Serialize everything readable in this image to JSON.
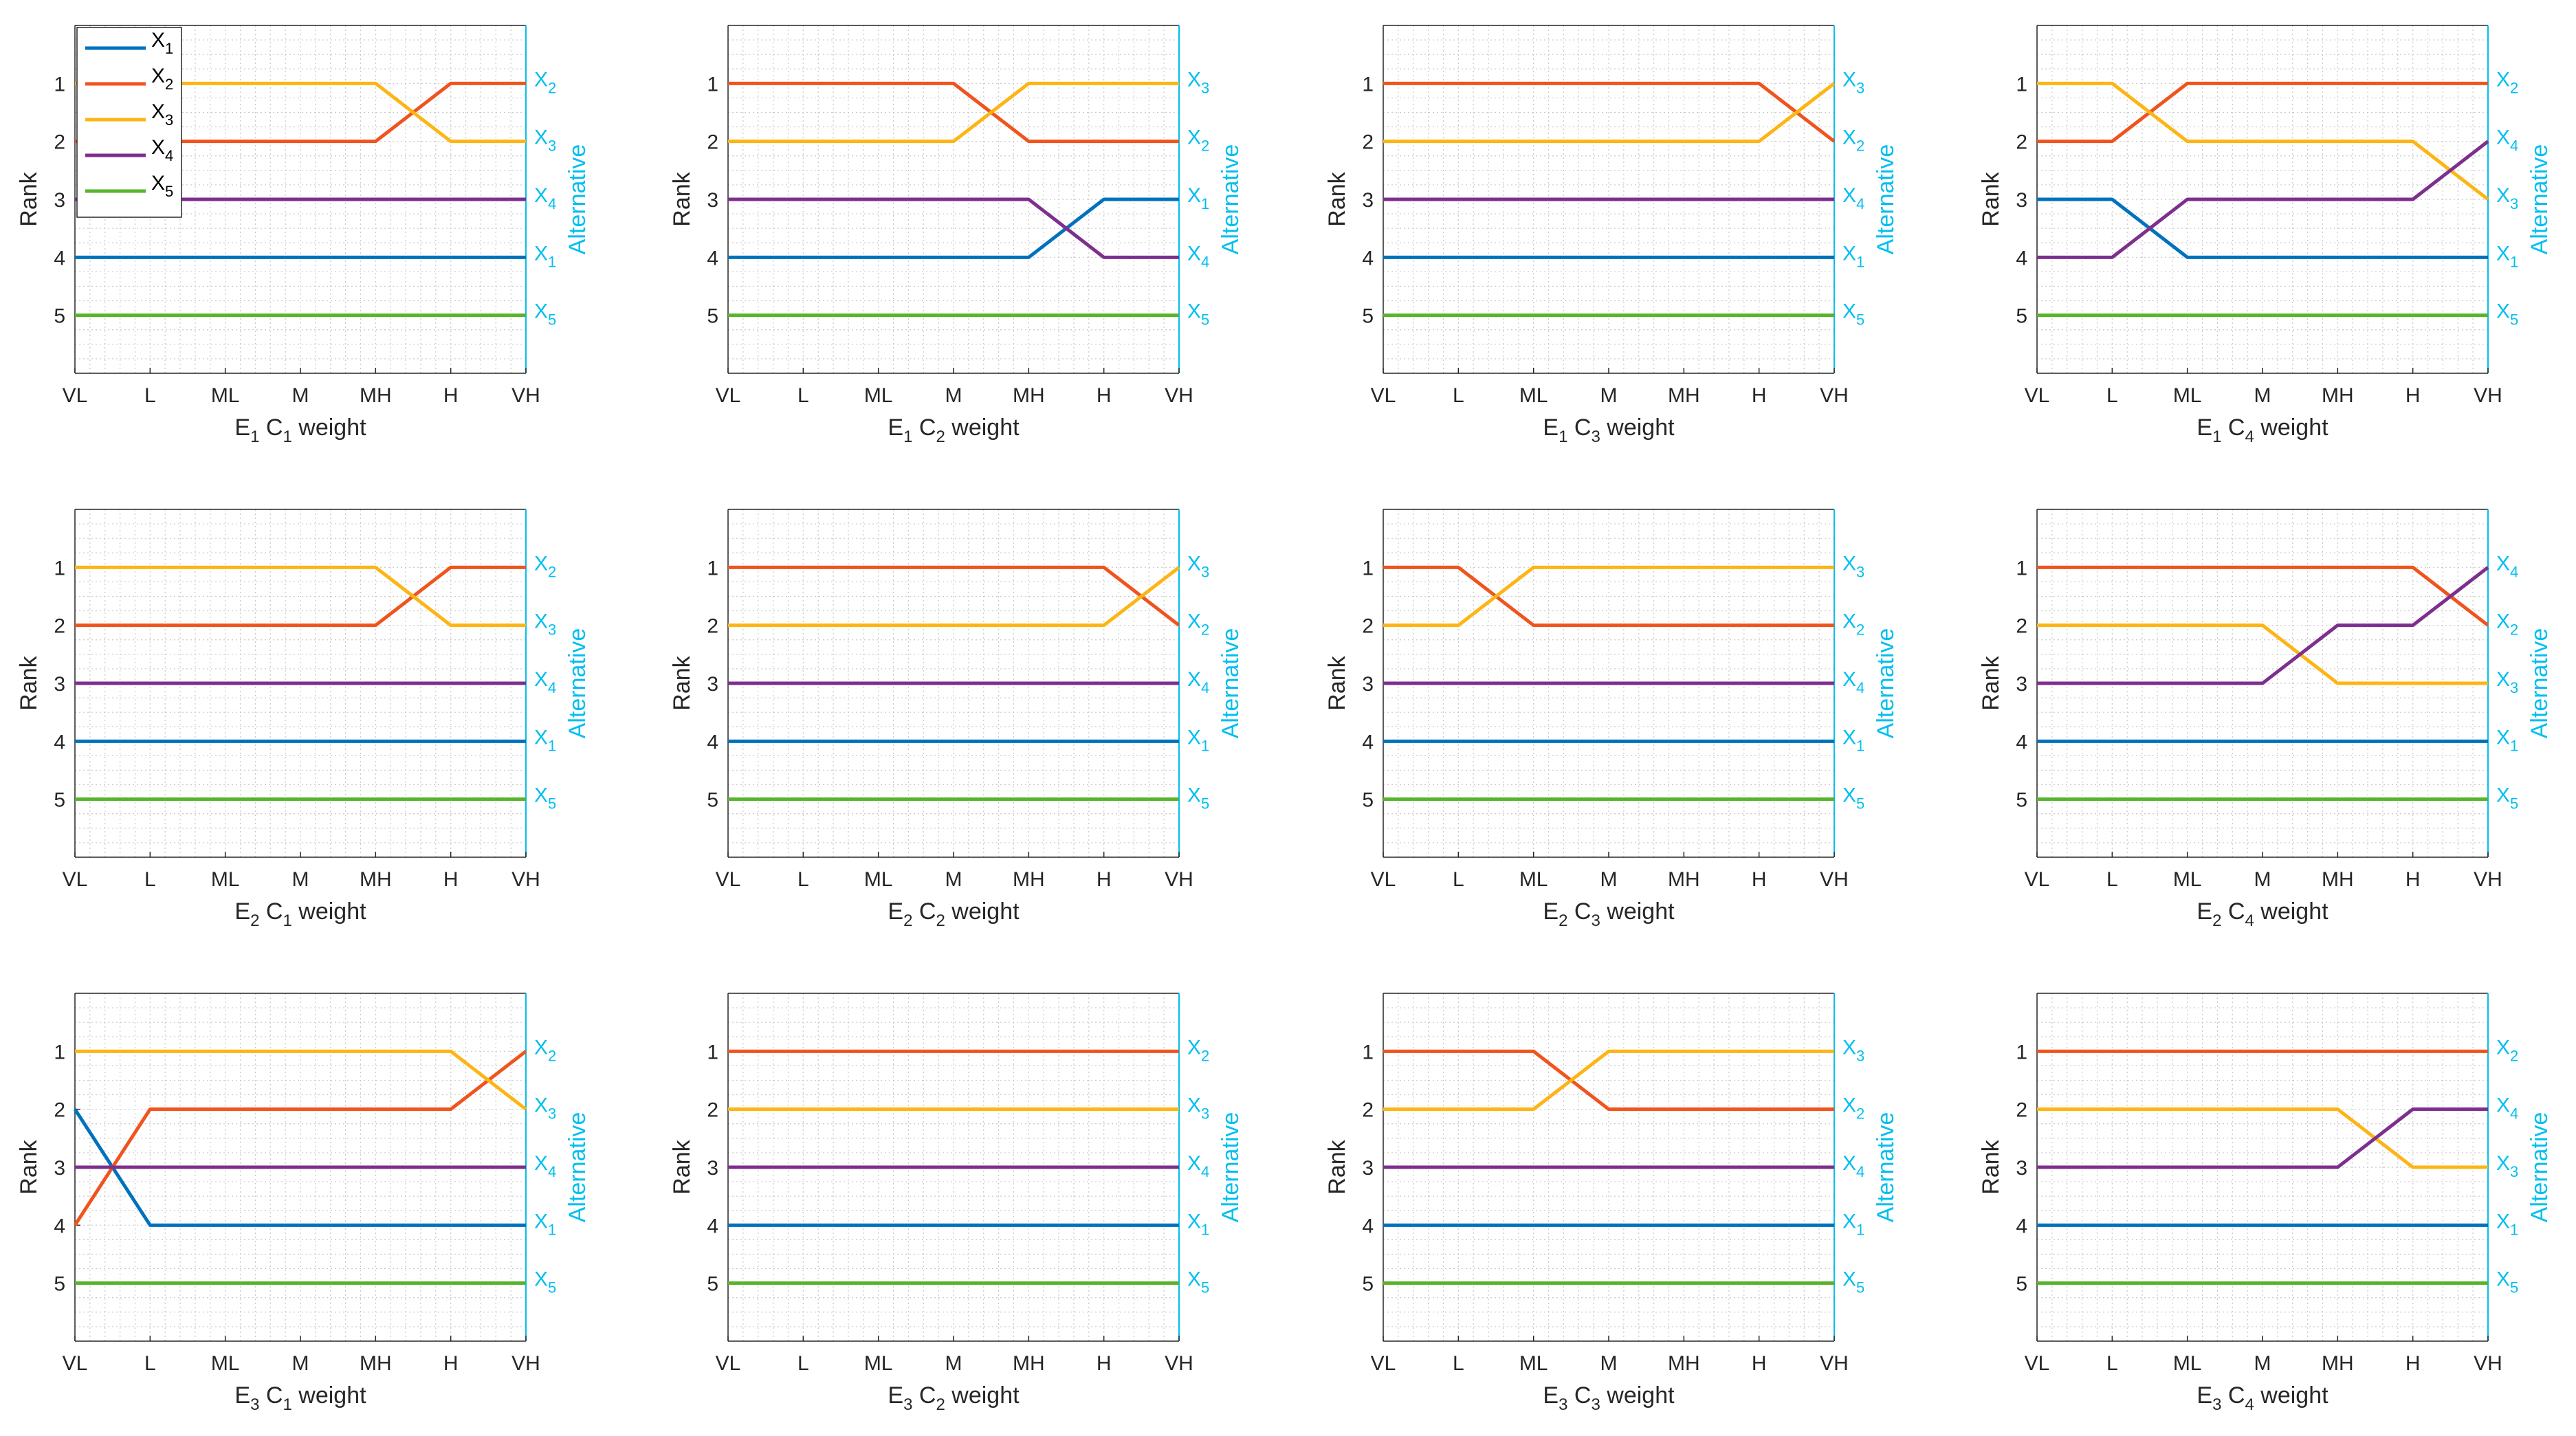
{
  "figure": {
    "x_categories": [
      "VL",
      "L",
      "ML",
      "M",
      "MH",
      "H",
      "VH"
    ],
    "rank_ticks": [
      "1",
      "2",
      "3",
      "4",
      "5"
    ],
    "ylabel": "Rank",
    "right_axis_label": "Alternative",
    "xlabel_suffix": "weight",
    "right_axis_color": "#00BFF0",
    "series_colors": {
      "X1": "#0072BD",
      "X2": "#F0541E",
      "X3": "#FDB515",
      "X4": "#7E2F8E",
      "X5": "#57B42B"
    }
  },
  "legend": {
    "entries": [
      {
        "id": "X1",
        "base": "X",
        "sub": "1"
      },
      {
        "id": "X2",
        "base": "X",
        "sub": "2"
      },
      {
        "id": "X3",
        "base": "X",
        "sub": "3"
      },
      {
        "id": "X4",
        "base": "X",
        "sub": "4"
      },
      {
        "id": "X5",
        "base": "X",
        "sub": "5"
      }
    ]
  },
  "chart_data": [
    {
      "type": "line",
      "title": "",
      "xlabel": {
        "e": "1",
        "c": "1"
      },
      "ylim": [
        0,
        6
      ],
      "categories": [
        "VL",
        "L",
        "ML",
        "M",
        "MH",
        "H",
        "VH"
      ],
      "series": [
        {
          "name": "X1",
          "values": [
            4,
            4,
            4,
            4,
            4,
            4,
            4
          ]
        },
        {
          "name": "X2",
          "values": [
            2,
            2,
            2,
            2,
            2,
            1,
            1
          ]
        },
        {
          "name": "X3",
          "values": [
            1,
            1,
            1,
            1,
            1,
            2,
            2
          ]
        },
        {
          "name": "X4",
          "values": [
            3,
            3,
            3,
            3,
            3,
            3,
            3
          ]
        },
        {
          "name": "X5",
          "values": [
            5,
            5,
            5,
            5,
            5,
            5,
            5
          ]
        }
      ]
    },
    {
      "type": "line",
      "title": "",
      "xlabel": {
        "e": "1",
        "c": "2"
      },
      "ylim": [
        0,
        6
      ],
      "categories": [
        "VL",
        "L",
        "ML",
        "M",
        "MH",
        "H",
        "VH"
      ],
      "series": [
        {
          "name": "X1",
          "values": [
            4,
            4,
            4,
            4,
            4,
            3,
            3
          ]
        },
        {
          "name": "X2",
          "values": [
            1,
            1,
            1,
            1,
            2,
            2,
            2
          ]
        },
        {
          "name": "X3",
          "values": [
            2,
            2,
            2,
            2,
            1,
            1,
            1
          ]
        },
        {
          "name": "X4",
          "values": [
            3,
            3,
            3,
            3,
            3,
            4,
            4
          ]
        },
        {
          "name": "X5",
          "values": [
            5,
            5,
            5,
            5,
            5,
            5,
            5
          ]
        }
      ]
    },
    {
      "type": "line",
      "title": "",
      "xlabel": {
        "e": "1",
        "c": "3"
      },
      "ylim": [
        0,
        6
      ],
      "categories": [
        "VL",
        "L",
        "ML",
        "M",
        "MH",
        "H",
        "VH"
      ],
      "series": [
        {
          "name": "X1",
          "values": [
            4,
            4,
            4,
            4,
            4,
            4,
            4
          ]
        },
        {
          "name": "X2",
          "values": [
            1,
            1,
            1,
            1,
            1,
            1,
            2
          ]
        },
        {
          "name": "X3",
          "values": [
            2,
            2,
            2,
            2,
            2,
            2,
            1
          ]
        },
        {
          "name": "X4",
          "values": [
            3,
            3,
            3,
            3,
            3,
            3,
            3
          ]
        },
        {
          "name": "X5",
          "values": [
            5,
            5,
            5,
            5,
            5,
            5,
            5
          ]
        }
      ]
    },
    {
      "type": "line",
      "title": "",
      "xlabel": {
        "e": "1",
        "c": "4"
      },
      "ylim": [
        0,
        6
      ],
      "categories": [
        "VL",
        "L",
        "ML",
        "M",
        "MH",
        "H",
        "VH"
      ],
      "series": [
        {
          "name": "X1",
          "values": [
            3,
            3,
            4,
            4,
            4,
            4,
            4
          ]
        },
        {
          "name": "X2",
          "values": [
            2,
            2,
            1,
            1,
            1,
            1,
            1
          ]
        },
        {
          "name": "X3",
          "values": [
            1,
            1,
            2,
            2,
            2,
            2,
            3
          ]
        },
        {
          "name": "X4",
          "values": [
            4,
            4,
            3,
            3,
            3,
            3,
            2
          ]
        },
        {
          "name": "X5",
          "values": [
            5,
            5,
            5,
            5,
            5,
            5,
            5
          ]
        }
      ]
    },
    {
      "type": "line",
      "title": "",
      "xlabel": {
        "e": "2",
        "c": "1"
      },
      "ylim": [
        0,
        6
      ],
      "categories": [
        "VL",
        "L",
        "ML",
        "M",
        "MH",
        "H",
        "VH"
      ],
      "series": [
        {
          "name": "X1",
          "values": [
            4,
            4,
            4,
            4,
            4,
            4,
            4
          ]
        },
        {
          "name": "X2",
          "values": [
            2,
            2,
            2,
            2,
            2,
            1,
            1
          ]
        },
        {
          "name": "X3",
          "values": [
            1,
            1,
            1,
            1,
            1,
            2,
            2
          ]
        },
        {
          "name": "X4",
          "values": [
            3,
            3,
            3,
            3,
            3,
            3,
            3
          ]
        },
        {
          "name": "X5",
          "values": [
            5,
            5,
            5,
            5,
            5,
            5,
            5
          ]
        }
      ]
    },
    {
      "type": "line",
      "title": "",
      "xlabel": {
        "e": "2",
        "c": "2"
      },
      "ylim": [
        0,
        6
      ],
      "categories": [
        "VL",
        "L",
        "ML",
        "M",
        "MH",
        "H",
        "VH"
      ],
      "series": [
        {
          "name": "X1",
          "values": [
            4,
            4,
            4,
            4,
            4,
            4,
            4
          ]
        },
        {
          "name": "X2",
          "values": [
            1,
            1,
            1,
            1,
            1,
            1,
            2
          ]
        },
        {
          "name": "X3",
          "values": [
            2,
            2,
            2,
            2,
            2,
            2,
            1
          ]
        },
        {
          "name": "X4",
          "values": [
            3,
            3,
            3,
            3,
            3,
            3,
            3
          ]
        },
        {
          "name": "X5",
          "values": [
            5,
            5,
            5,
            5,
            5,
            5,
            5
          ]
        }
      ]
    },
    {
      "type": "line",
      "title": "",
      "xlabel": {
        "e": "2",
        "c": "3"
      },
      "ylim": [
        0,
        6
      ],
      "categories": [
        "VL",
        "L",
        "ML",
        "M",
        "MH",
        "H",
        "VH"
      ],
      "series": [
        {
          "name": "X1",
          "values": [
            4,
            4,
            4,
            4,
            4,
            4,
            4
          ]
        },
        {
          "name": "X2",
          "values": [
            1,
            1,
            2,
            2,
            2,
            2,
            2
          ]
        },
        {
          "name": "X3",
          "values": [
            2,
            2,
            1,
            1,
            1,
            1,
            1
          ]
        },
        {
          "name": "X4",
          "values": [
            3,
            3,
            3,
            3,
            3,
            3,
            3
          ]
        },
        {
          "name": "X5",
          "values": [
            5,
            5,
            5,
            5,
            5,
            5,
            5
          ]
        }
      ]
    },
    {
      "type": "line",
      "title": "",
      "xlabel": {
        "e": "2",
        "c": "4"
      },
      "ylim": [
        0,
        6
      ],
      "categories": [
        "VL",
        "L",
        "ML",
        "M",
        "MH",
        "H",
        "VH"
      ],
      "series": [
        {
          "name": "X1",
          "values": [
            4,
            4,
            4,
            4,
            4,
            4,
            4
          ]
        },
        {
          "name": "X2",
          "values": [
            1,
            1,
            1,
            1,
            1,
            1,
            2
          ]
        },
        {
          "name": "X3",
          "values": [
            2,
            2,
            2,
            2,
            3,
            3,
            3
          ]
        },
        {
          "name": "X4",
          "values": [
            3,
            3,
            3,
            3,
            2,
            2,
            1
          ]
        },
        {
          "name": "X5",
          "values": [
            5,
            5,
            5,
            5,
            5,
            5,
            5
          ]
        }
      ]
    },
    {
      "type": "line",
      "title": "",
      "xlabel": {
        "e": "3",
        "c": "1"
      },
      "ylim": [
        0,
        6
      ],
      "categories": [
        "VL",
        "L",
        "ML",
        "M",
        "MH",
        "H",
        "VH"
      ],
      "series": [
        {
          "name": "X1",
          "values": [
            2,
            4,
            4,
            4,
            4,
            4,
            4
          ]
        },
        {
          "name": "X2",
          "values": [
            4,
            2,
            2,
            2,
            2,
            2,
            1
          ]
        },
        {
          "name": "X3",
          "values": [
            1,
            1,
            1,
            1,
            1,
            1,
            2
          ]
        },
        {
          "name": "X4",
          "values": [
            3,
            3,
            3,
            3,
            3,
            3,
            3
          ]
        },
        {
          "name": "X5",
          "values": [
            5,
            5,
            5,
            5,
            5,
            5,
            5
          ]
        }
      ]
    },
    {
      "type": "line",
      "title": "",
      "xlabel": {
        "e": "3",
        "c": "2"
      },
      "ylim": [
        0,
        6
      ],
      "categories": [
        "VL",
        "L",
        "ML",
        "M",
        "MH",
        "H",
        "VH"
      ],
      "series": [
        {
          "name": "X1",
          "values": [
            4,
            4,
            4,
            4,
            4,
            4,
            4
          ]
        },
        {
          "name": "X2",
          "values": [
            1,
            1,
            1,
            1,
            1,
            1,
            1
          ]
        },
        {
          "name": "X3",
          "values": [
            2,
            2,
            2,
            2,
            2,
            2,
            2
          ]
        },
        {
          "name": "X4",
          "values": [
            3,
            3,
            3,
            3,
            3,
            3,
            3
          ]
        },
        {
          "name": "X5",
          "values": [
            5,
            5,
            5,
            5,
            5,
            5,
            5
          ]
        }
      ]
    },
    {
      "type": "line",
      "title": "",
      "xlabel": {
        "e": "3",
        "c": "3"
      },
      "ylim": [
        0,
        6
      ],
      "categories": [
        "VL",
        "L",
        "ML",
        "M",
        "MH",
        "H",
        "VH"
      ],
      "series": [
        {
          "name": "X1",
          "values": [
            4,
            4,
            4,
            4,
            4,
            4,
            4
          ]
        },
        {
          "name": "X2",
          "values": [
            1,
            1,
            1,
            2,
            2,
            2,
            2
          ]
        },
        {
          "name": "X3",
          "values": [
            2,
            2,
            2,
            1,
            1,
            1,
            1
          ]
        },
        {
          "name": "X4",
          "values": [
            3,
            3,
            3,
            3,
            3,
            3,
            3
          ]
        },
        {
          "name": "X5",
          "values": [
            5,
            5,
            5,
            5,
            5,
            5,
            5
          ]
        }
      ]
    },
    {
      "type": "line",
      "title": "",
      "xlabel": {
        "e": "3",
        "c": "4"
      },
      "ylim": [
        0,
        6
      ],
      "categories": [
        "VL",
        "L",
        "ML",
        "M",
        "MH",
        "H",
        "VH"
      ],
      "series": [
        {
          "name": "X1",
          "values": [
            4,
            4,
            4,
            4,
            4,
            4,
            4
          ]
        },
        {
          "name": "X2",
          "values": [
            1,
            1,
            1,
            1,
            1,
            1,
            1
          ]
        },
        {
          "name": "X3",
          "values": [
            2,
            2,
            2,
            2,
            2,
            3,
            3
          ]
        },
        {
          "name": "X4",
          "values": [
            3,
            3,
            3,
            3,
            3,
            2,
            2
          ]
        },
        {
          "name": "X5",
          "values": [
            5,
            5,
            5,
            5,
            5,
            5,
            5
          ]
        }
      ]
    }
  ]
}
